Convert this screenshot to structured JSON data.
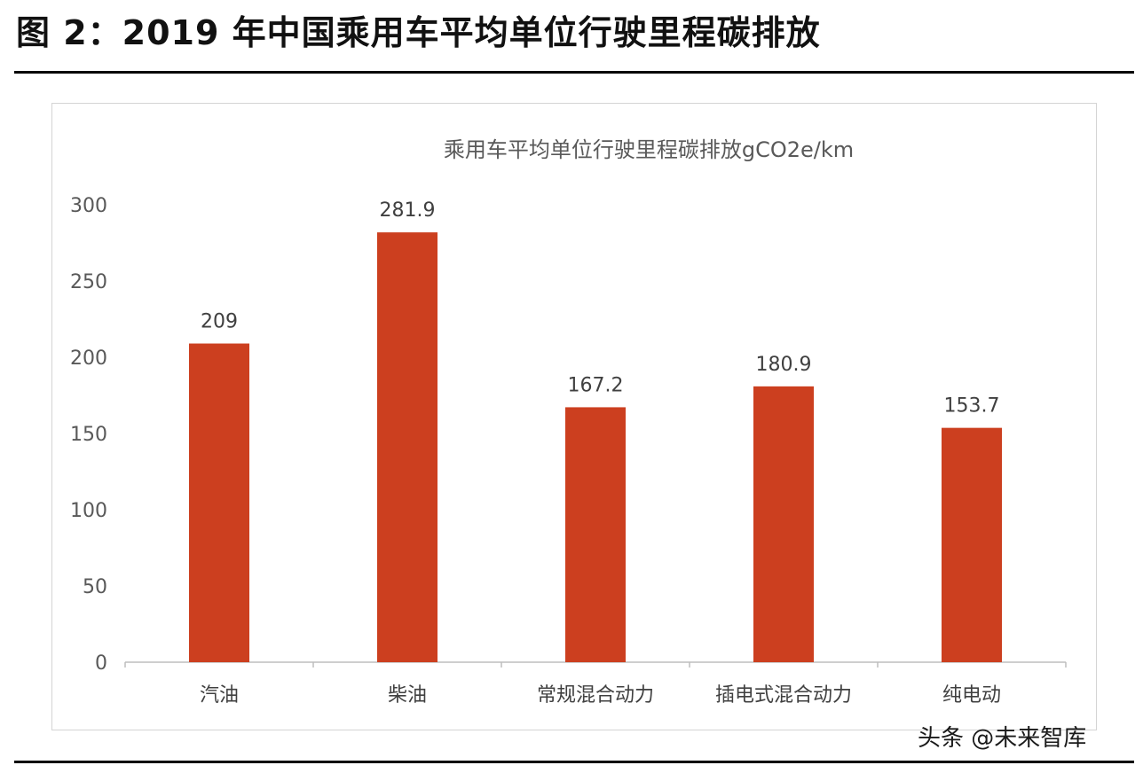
{
  "figure_title": "图 2：2019 年中国乘用车平均单位行驶里程碳排放",
  "watermark": "头条 @未来智库",
  "colors": {
    "bar": "#cc3f1f",
    "axis": "#bdbdbd",
    "tick_text": "#595959",
    "title_text": "#595959"
  },
  "chart_data": {
    "type": "bar",
    "title": "乘用车平均单位行驶里程碳排放gCO2e/km",
    "categories": [
      "汽油",
      "柴油",
      "常规混合动力",
      "插电式混合动力",
      "纯电动"
    ],
    "values": [
      209,
      281.9,
      167.2,
      180.9,
      153.7
    ],
    "value_labels": [
      "209",
      "281.9",
      "167.2",
      "180.9",
      "153.7"
    ],
    "ylim": [
      0,
      300
    ],
    "yticks": [
      0,
      50,
      100,
      150,
      200,
      250,
      300
    ],
    "xlabel": "",
    "ylabel": "",
    "grid": false,
    "legend": "none"
  }
}
